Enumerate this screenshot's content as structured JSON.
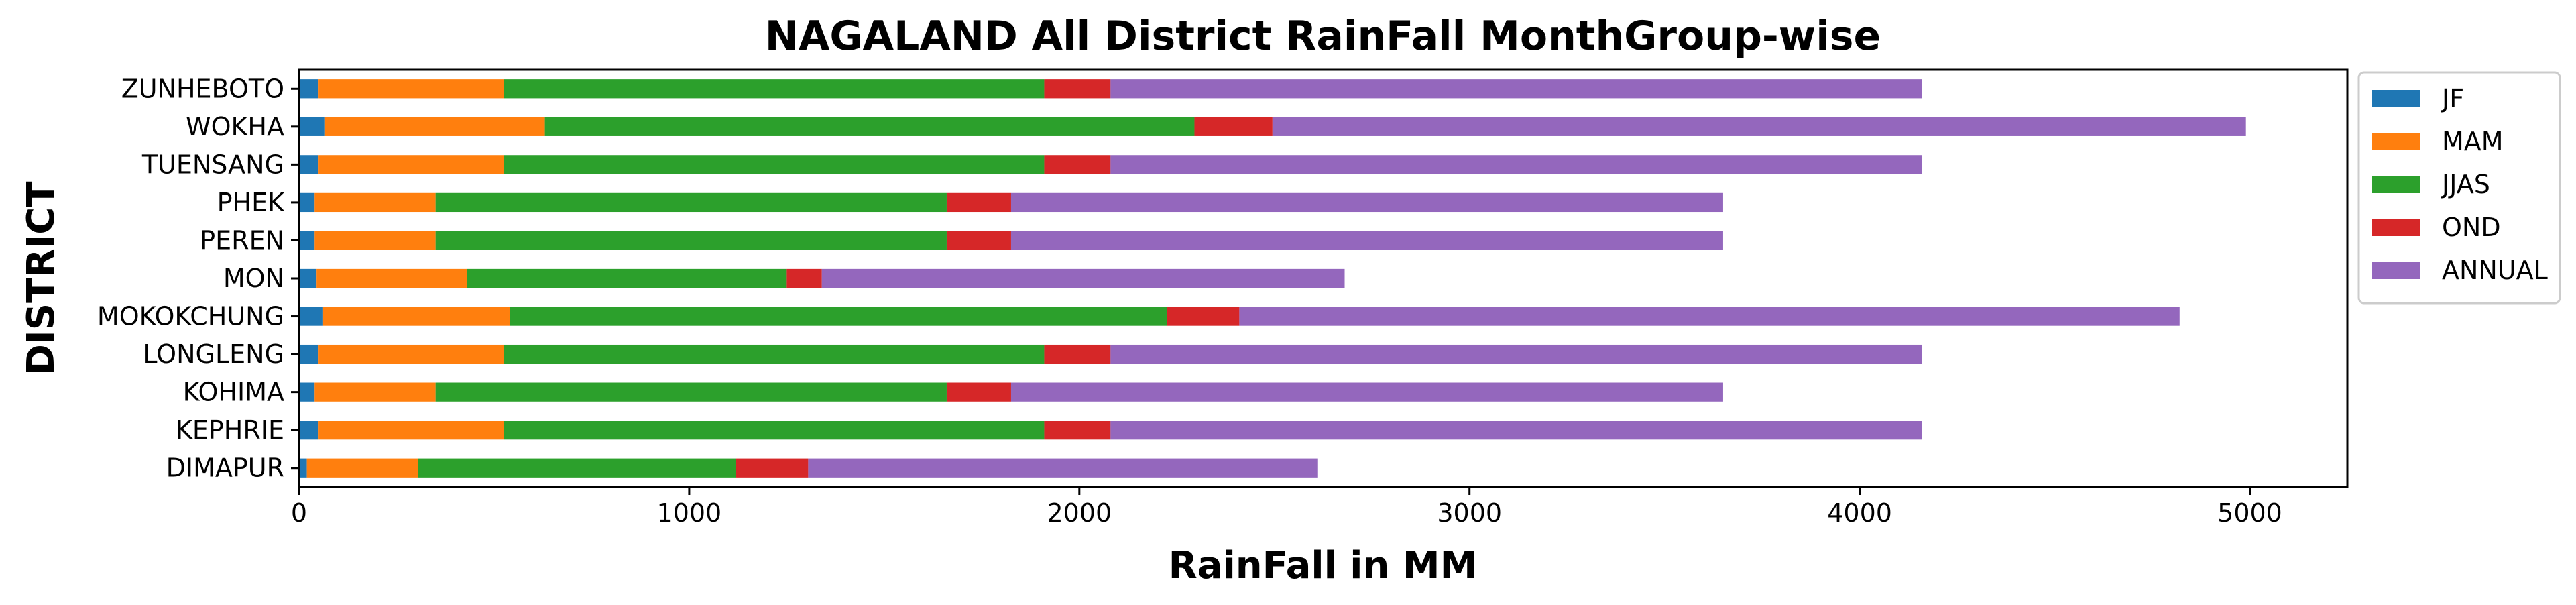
{
  "chart_data": {
    "type": "bar",
    "orientation": "horizontal",
    "stacked": true,
    "title": "NAGALAND All District RainFall MonthGroup-wise",
    "xlabel": "RainFall in MM",
    "ylabel": "DISTRICT",
    "xlim": [
      0,
      5250
    ],
    "xticks": [
      0,
      1000,
      2000,
      3000,
      4000,
      5000
    ],
    "grid": false,
    "legend_position": "outside-top-right",
    "categories": [
      "DIMAPUR",
      "KEPHRIE",
      "KOHIMA",
      "LONGLENG",
      "MOKOKCHUNG",
      "MON",
      "PEREN",
      "PHEK",
      "TUENSANG",
      "WOKHA",
      "ZUNHEBOTO"
    ],
    "series": [
      {
        "name": "JF",
        "color": "#1f77b4",
        "values": [
          20,
          50,
          40,
          50,
          60,
          45,
          40,
          40,
          50,
          65,
          50
        ]
      },
      {
        "name": "MAM",
        "color": "#ff7f0e",
        "values": [
          285,
          475,
          310,
          475,
          480,
          385,
          310,
          310,
          475,
          565,
          475
        ]
      },
      {
        "name": "JJAS",
        "color": "#2ca02c",
        "values": [
          815,
          1385,
          1310,
          1385,
          1685,
          820,
          1310,
          1310,
          1385,
          1665,
          1385
        ]
      },
      {
        "name": "OND",
        "color": "#d62728",
        "values": [
          185,
          170,
          165,
          170,
          185,
          90,
          165,
          165,
          170,
          200,
          170
        ]
      },
      {
        "name": "ANNUAL",
        "color": "#9467bd",
        "values": [
          1305,
          2080,
          1825,
          2080,
          2410,
          1340,
          1825,
          1825,
          2080,
          2495,
          2080
        ]
      }
    ]
  }
}
